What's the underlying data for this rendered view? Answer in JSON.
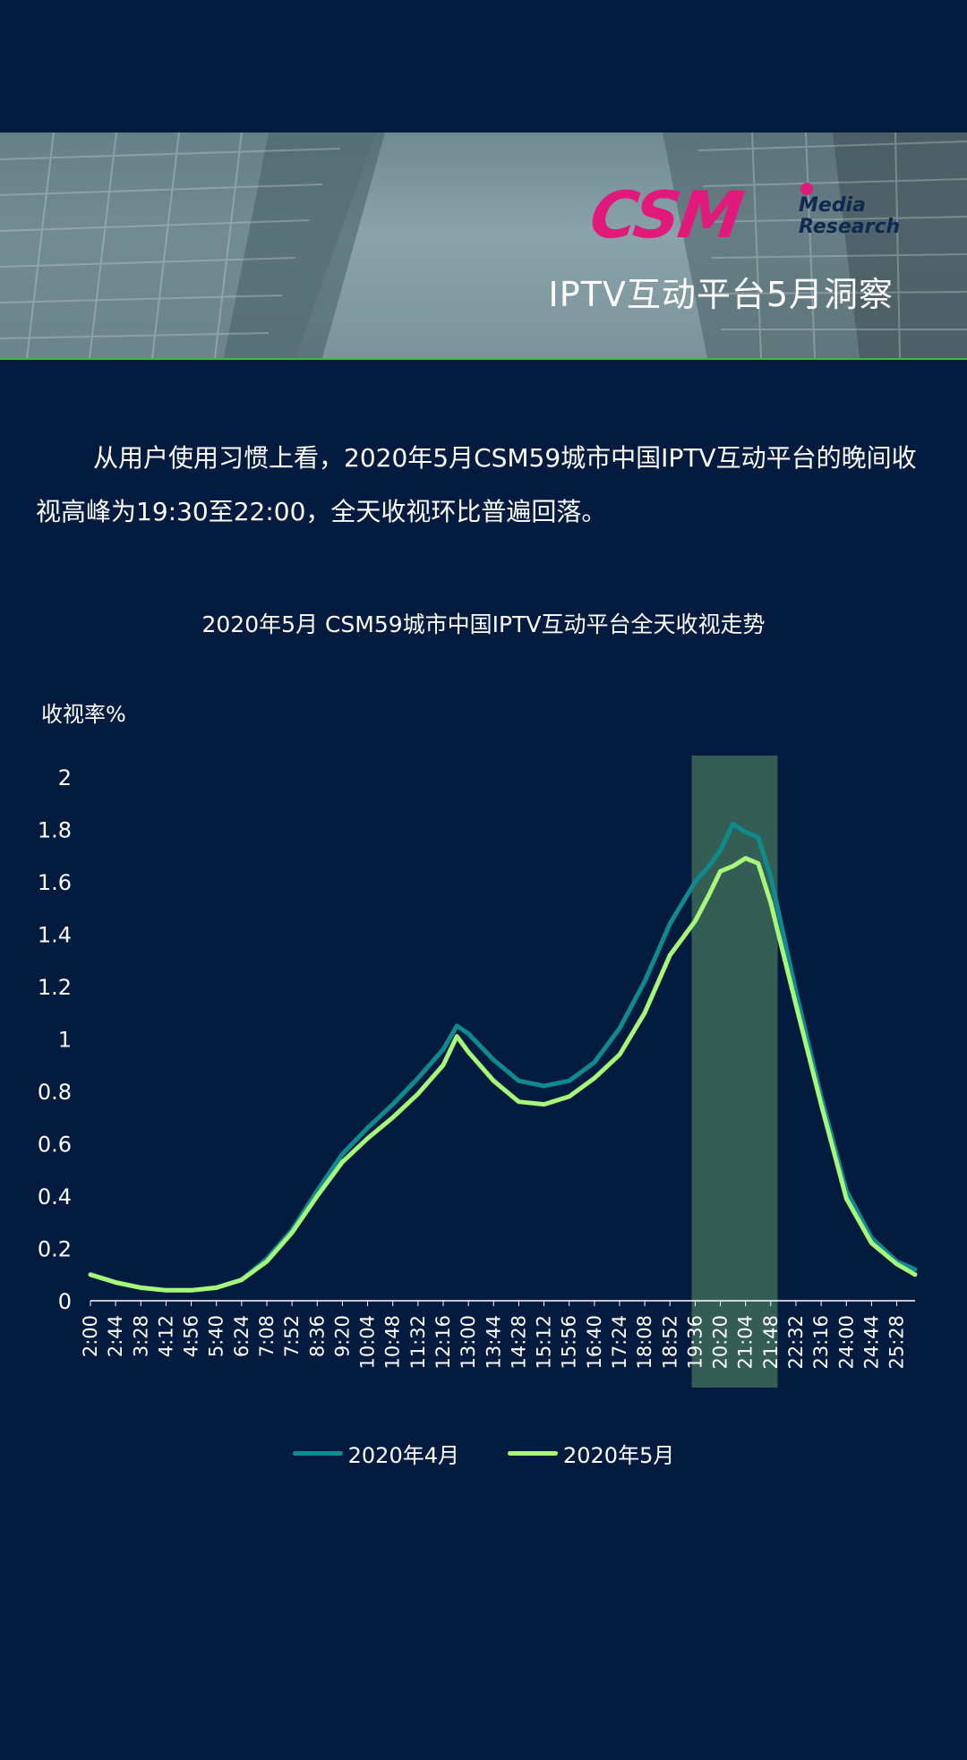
{
  "banner": {
    "logo_text": "CSM",
    "logo_sub_1": "Media",
    "logo_sub_2": "Research",
    "title": "IPTV互动平台5月洞察"
  },
  "intro": "从用户使用习惯上看，2020年5月CSM59城市中国IPTV互动平台的晚间收视高峰为19:30至22:00，全天收视环比普遍回落。",
  "colors": {
    "background": "#031b3f",
    "april": "#0f8a8f",
    "may": "#a6f77a",
    "highlight": "#3a6656",
    "logo": "#e0197a"
  },
  "chart_data": {
    "type": "line",
    "title": "2020年5月  CSM59城市中国IPTV互动平台全天收视走势",
    "ylabel": "收视率%",
    "xlabel": "",
    "ylim": [
      0,
      2
    ],
    "yticks": [
      "0",
      "0.2",
      "0.4",
      "0.6",
      "0.8",
      "1",
      "1.2",
      "1.4",
      "1.6",
      "1.8",
      "2"
    ],
    "xlim": [
      "2:00",
      "26:00"
    ],
    "xticks": [
      "2:00",
      "2:44",
      "3:28",
      "4:12",
      "4:56",
      "5:40",
      "6:24",
      "7:08",
      "7:52",
      "8:36",
      "9:20",
      "10:04",
      "10:48",
      "11:32",
      "12:16",
      "13:00",
      "13:44",
      "14:28",
      "15:12",
      "15:56",
      "16:40",
      "17:24",
      "18:08",
      "18:52",
      "19:36",
      "20:20",
      "21:04",
      "21:48",
      "22:32",
      "23:16",
      "24:00",
      "24:44",
      "25:28"
    ],
    "highlight_range": [
      "19:30",
      "22:00"
    ],
    "legend_position": "bottom",
    "grid": false,
    "x": [
      "2:00",
      "2:44",
      "3:28",
      "4:12",
      "4:56",
      "5:40",
      "6:24",
      "7:08",
      "7:52",
      "8:36",
      "9:20",
      "10:04",
      "10:48",
      "11:32",
      "12:16",
      "12:40",
      "13:00",
      "13:44",
      "14:28",
      "15:12",
      "15:56",
      "16:40",
      "17:24",
      "18:08",
      "18:52",
      "19:36",
      "20:00",
      "20:20",
      "20:42",
      "21:04",
      "21:26",
      "21:48",
      "22:32",
      "23:16",
      "24:00",
      "24:44",
      "25:28",
      "26:00"
    ],
    "series": [
      {
        "name": "2020年4月",
        "values": [
          0.1,
          0.07,
          0.05,
          0.04,
          0.04,
          0.05,
          0.08,
          0.16,
          0.27,
          0.42,
          0.56,
          0.66,
          0.75,
          0.85,
          0.96,
          1.05,
          1.02,
          0.92,
          0.84,
          0.82,
          0.84,
          0.91,
          1.04,
          1.22,
          1.44,
          1.6,
          1.66,
          1.72,
          1.82,
          1.79,
          1.77,
          1.62,
          1.18,
          0.78,
          0.42,
          0.24,
          0.15,
          0.12
        ]
      },
      {
        "name": "2020年5月",
        "values": [
          0.1,
          0.07,
          0.05,
          0.04,
          0.04,
          0.05,
          0.08,
          0.15,
          0.26,
          0.4,
          0.53,
          0.62,
          0.7,
          0.79,
          0.9,
          1.01,
          0.95,
          0.84,
          0.76,
          0.75,
          0.78,
          0.85,
          0.94,
          1.1,
          1.32,
          1.45,
          1.55,
          1.64,
          1.66,
          1.69,
          1.67,
          1.52,
          1.13,
          0.75,
          0.39,
          0.22,
          0.14,
          0.1
        ]
      }
    ]
  }
}
